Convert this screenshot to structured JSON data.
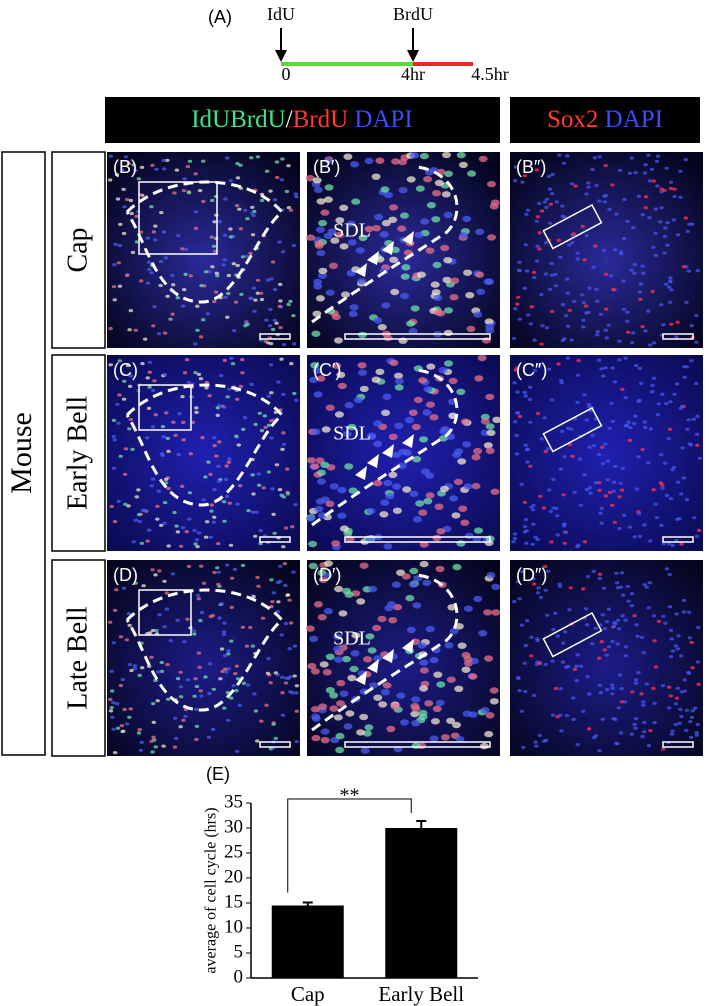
{
  "timeline": {
    "label": "(A)",
    "start_marker": "IdU",
    "second_marker": "BrdU",
    "t0": "0",
    "t1": "4hr",
    "t2": "4.5hr"
  },
  "headers": [
    {
      "parts": [
        {
          "text": "IdUBrdU",
          "color": "#46e08c"
        },
        {
          "text": "/",
          "color": "#ffffff"
        },
        {
          "text": "BrdU",
          "color": "#ff3b30"
        },
        {
          "text": " DAPI",
          "color": "#3c4bff"
        }
      ]
    },
    {
      "parts": [
        {
          "text": "Sox2",
          "color": "#ff3b30"
        },
        {
          "text": " DAPI",
          "color": "#3c4bff"
        }
      ]
    }
  ],
  "species": "Mouse",
  "rows": [
    "Cap",
    "Early Bell",
    "Late Bell"
  ],
  "panels": [
    [
      "(B)",
      "(B′)",
      "(B″)"
    ],
    [
      "(C)",
      "(C′)",
      "(C″)"
    ],
    [
      "(D)",
      "(D′)",
      "(D″)"
    ]
  ],
  "sdl_labels": [
    "SDL",
    "SDL",
    "SDL"
  ],
  "chart_data": {
    "type": "bar",
    "panel_label": "(E)",
    "ylabel": "average of cell cycle (hrs)",
    "categories": [
      "Cap",
      "Early Bell"
    ],
    "values": [
      14.5,
      30
    ],
    "errors": [
      0.6,
      1.4
    ],
    "color": "#000000",
    "ylim": [
      0,
      35
    ],
    "yticks": [
      0,
      5,
      10,
      15,
      20,
      25,
      30,
      35
    ],
    "annotation": "**"
  }
}
